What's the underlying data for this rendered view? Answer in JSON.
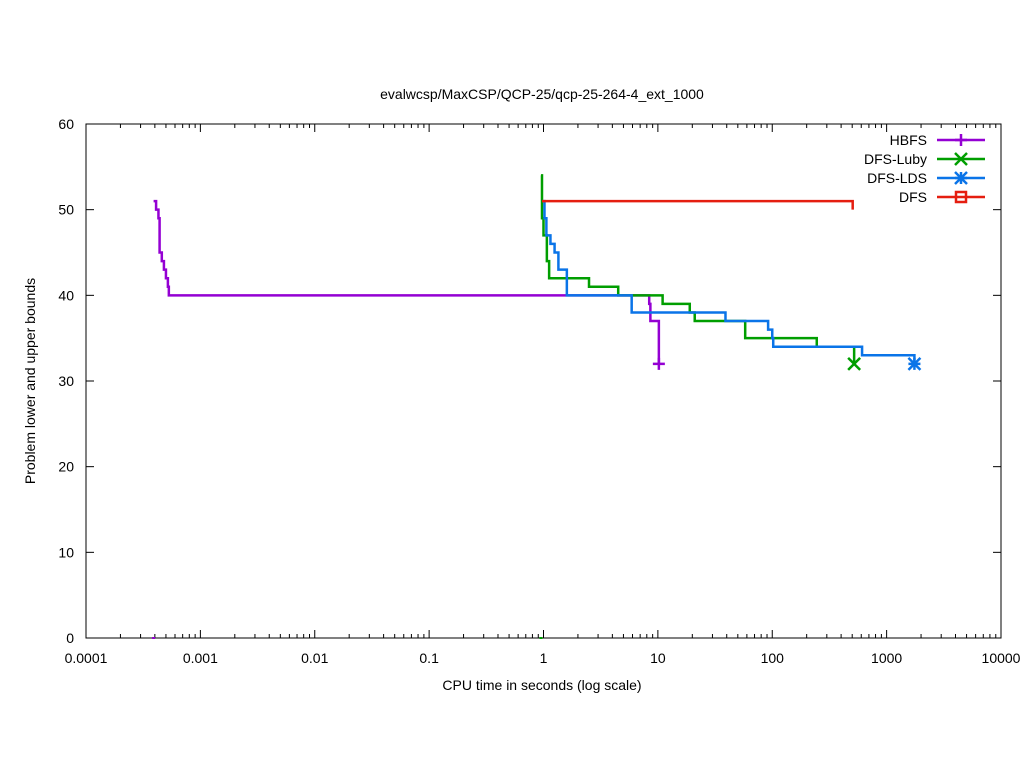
{
  "chart_data": {
    "type": "line",
    "title": "evalwcsp/MaxCSP/QCP-25/qcp-25-264-4_ext_1000",
    "xlabel": "CPU time in seconds (log scale)",
    "ylabel": "Problem lower and upper bounds",
    "x_scale": "log",
    "xlim": [
      0.0001,
      10000
    ],
    "ylim": [
      0,
      60
    ],
    "x_ticks": [
      {
        "value": 0.0001,
        "label": "0.0001"
      },
      {
        "value": 0.001,
        "label": "0.001"
      },
      {
        "value": 0.01,
        "label": "0.01"
      },
      {
        "value": 0.1,
        "label": "0.1"
      },
      {
        "value": 1,
        "label": "1"
      },
      {
        "value": 10,
        "label": "10"
      },
      {
        "value": 100,
        "label": "100"
      },
      {
        "value": 1000,
        "label": "1000"
      },
      {
        "value": 10000,
        "label": "10000"
      }
    ],
    "y_ticks": [
      {
        "value": 0,
        "label": "0"
      },
      {
        "value": 10,
        "label": "10"
      },
      {
        "value": 20,
        "label": "20"
      },
      {
        "value": 30,
        "label": "30"
      },
      {
        "value": 40,
        "label": "40"
      },
      {
        "value": 50,
        "label": "50"
      },
      {
        "value": 60,
        "label": "60"
      }
    ],
    "grid": false,
    "legend_position": "top-right",
    "series": [
      {
        "name": "HBFS",
        "color": "#9400d3",
        "marker": "plus",
        "step": true,
        "points": [
          [
            0.00039,
            51
          ],
          [
            0.00041,
            50
          ],
          [
            0.00043,
            49
          ],
          [
            0.00044,
            45
          ],
          [
            0.00046,
            44
          ],
          [
            0.00048,
            43
          ],
          [
            0.0005,
            42
          ],
          [
            0.00052,
            41
          ],
          [
            0.00053,
            40
          ],
          [
            8.2,
            40
          ],
          [
            8.4,
            39
          ],
          [
            8.6,
            37
          ],
          [
            10.2,
            37
          ],
          [
            10.2,
            32
          ]
        ],
        "final_marker": [
          10.2,
          32
        ],
        "lower_bound_marker": [
          0.00039,
          0
        ]
      },
      {
        "name": "DFS-Luby",
        "color": "#009e00",
        "marker": "x",
        "step": true,
        "points": [
          [
            0.95,
            54
          ],
          [
            0.97,
            49
          ],
          [
            1.0,
            47
          ],
          [
            1.07,
            44
          ],
          [
            1.12,
            42
          ],
          [
            1.6,
            42
          ],
          [
            2.5,
            41
          ],
          [
            4.5,
            40
          ],
          [
            10.5,
            40
          ],
          [
            11,
            39
          ],
          [
            19,
            38
          ],
          [
            21,
            37
          ],
          [
            56,
            37
          ],
          [
            58,
            35
          ],
          [
            240,
            35
          ],
          [
            245,
            34
          ],
          [
            520,
            34
          ],
          [
            520,
            32
          ]
        ],
        "final_marker": [
          520,
          32
        ],
        "lower_bound_marker": [
          0.95,
          0
        ]
      },
      {
        "name": "DFS-LDS",
        "color": "#0a74e8",
        "marker": "star",
        "step": true,
        "points": [
          [
            0.97,
            51
          ],
          [
            1.02,
            49
          ],
          [
            1.06,
            47
          ],
          [
            1.15,
            46
          ],
          [
            1.25,
            45
          ],
          [
            1.35,
            43
          ],
          [
            1.6,
            40
          ],
          [
            5.8,
            40
          ],
          [
            5.9,
            38
          ],
          [
            38,
            38
          ],
          [
            39,
            37
          ],
          [
            88,
            37
          ],
          [
            92,
            36
          ],
          [
            100,
            35
          ],
          [
            102,
            34
          ],
          [
            600,
            34
          ],
          [
            610,
            33
          ],
          [
            1750,
            33
          ],
          [
            1750,
            32
          ]
        ],
        "final_marker": [
          1750,
          32
        ]
      },
      {
        "name": "DFS",
        "color": "#e51e10",
        "marker": "square",
        "step": true,
        "points": [
          [
            0.97,
            51
          ],
          [
            505,
            51
          ],
          [
            505,
            50
          ]
        ]
      }
    ]
  }
}
